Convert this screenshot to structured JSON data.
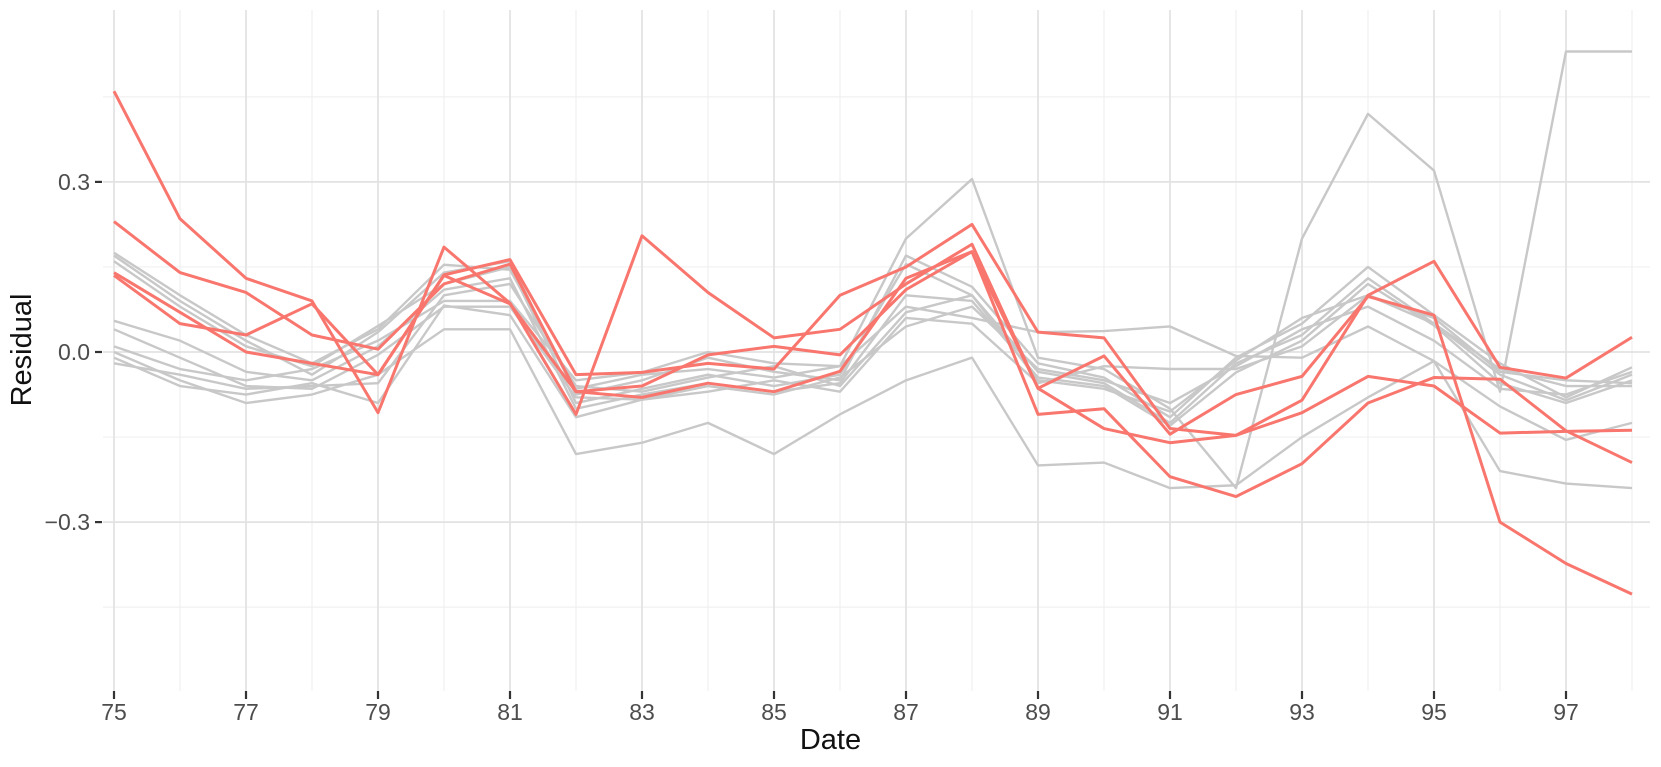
{
  "figure": {
    "title": "",
    "background": "#ffffff"
  },
  "chart_data": {
    "type": "line",
    "title": "",
    "xlabel": "Date",
    "ylabel": "Residual",
    "x": [
      75,
      76,
      77,
      78,
      79,
      80,
      81,
      82,
      83,
      84,
      85,
      86,
      87,
      88,
      89,
      90,
      91,
      92,
      93,
      94,
      95,
      96,
      97,
      98
    ],
    "x_major_ticks": [
      75,
      77,
      79,
      81,
      83,
      85,
      87,
      89,
      91,
      93,
      95,
      97
    ],
    "x_tick_labels": [
      "75",
      "77",
      "79",
      "81",
      "83",
      "85",
      "87",
      "89",
      "91",
      "93",
      "95",
      "97"
    ],
    "x_minor_ticks": [
      76,
      78,
      80,
      82,
      84,
      86,
      88,
      90,
      92,
      94,
      96,
      98
    ],
    "y_major_ticks": [
      0.3,
      0.0,
      -0.3
    ],
    "y_tick_labels": [
      "0.3",
      "0.0",
      "−0.3"
    ],
    "y_minor_ticks": [
      0.45,
      0.15,
      -0.15,
      -0.45
    ],
    "xlim": [
      74.8,
      98.3
    ],
    "ylim": [
      -0.6,
      0.61
    ],
    "grid": "major-and-minor",
    "legend": "none",
    "colors": {
      "highlight_line": "#f8766d",
      "other_line": "#c8c8c8",
      "grid_major": "#e2e2e2",
      "grid_minor": "#f0f0f0",
      "tick_mark": "#333333",
      "tick_text": "#4d4d4d",
      "axis_title_text": "#111111"
    },
    "series": [
      {
        "name": "gray-1",
        "group": "other",
        "values": [
          0.175,
          0.1,
          0.03,
          -0.02,
          0.04,
          0.154,
          0.145,
          -0.065,
          -0.04,
          -0.03,
          -0.045,
          -0.025,
          0.2,
          0.305,
          -0.01,
          -0.03,
          -0.1,
          -0.24,
          0.2,
          0.42,
          0.32,
          -0.07,
          0.53,
          0.53
        ]
      },
      {
        "name": "gray-2",
        "group": "other",
        "values": [
          0.17,
          0.09,
          0.02,
          -0.04,
          0.035,
          0.14,
          0.16,
          -0.075,
          -0.05,
          -0.01,
          -0.035,
          -0.05,
          0.17,
          0.115,
          -0.02,
          -0.045,
          -0.115,
          -0.01,
          0.05,
          0.15,
          0.065,
          -0.02,
          -0.08,
          -0.027
        ]
      },
      {
        "name": "gray-3",
        "group": "other",
        "values": [
          0.16,
          0.08,
          0.01,
          -0.025,
          0.046,
          0.12,
          0.15,
          -0.09,
          -0.065,
          -0.04,
          -0.06,
          -0.04,
          0.155,
          0.1,
          -0.035,
          -0.055,
          -0.125,
          -0.02,
          0.03,
          0.13,
          0.05,
          -0.04,
          -0.085,
          -0.04
        ]
      },
      {
        "name": "gray-4",
        "group": "other",
        "values": [
          0.055,
          0.02,
          -0.035,
          -0.05,
          0.01,
          0.11,
          0.13,
          -0.1,
          -0.075,
          -0.055,
          -0.07,
          -0.055,
          0.1,
          0.09,
          -0.045,
          -0.06,
          -0.13,
          -0.036,
          0.02,
          0.12,
          0.047,
          -0.055,
          -0.09,
          -0.05
        ]
      },
      {
        "name": "gray-5",
        "group": "other",
        "values": [
          0.04,
          -0.01,
          -0.06,
          -0.065,
          -0.005,
          0.08,
          0.08,
          -0.08,
          -0.084,
          -0.07,
          -0.05,
          -0.07,
          0.06,
          0.05,
          -0.055,
          -0.025,
          -0.03,
          -0.03,
          0.01,
          0.1,
          0.05,
          -0.03,
          -0.06,
          -0.06
        ]
      },
      {
        "name": "gray-6",
        "group": "other",
        "values": [
          0.01,
          -0.03,
          -0.05,
          -0.03,
          0.02,
          0.09,
          0.09,
          -0.05,
          -0.036,
          0.0,
          -0.02,
          -0.025,
          0.08,
          0.06,
          0.035,
          0.037,
          0.045,
          -0.007,
          -0.01,
          0.045,
          -0.016,
          -0.096,
          -0.155,
          -0.125
        ]
      },
      {
        "name": "gray-7",
        "group": "other",
        "values": [
          0.0,
          -0.05,
          -0.09,
          -0.075,
          -0.04,
          0.04,
          0.04,
          -0.18,
          -0.16,
          -0.125,
          -0.18,
          -0.11,
          -0.05,
          -0.01,
          -0.2,
          -0.195,
          -0.24,
          -0.235,
          -0.15,
          -0.08,
          -0.016,
          -0.21,
          -0.232,
          -0.24
        ]
      },
      {
        "name": "gray-8",
        "group": "other",
        "values": [
          -0.01,
          -0.06,
          -0.075,
          -0.055,
          -0.09,
          0.082,
          0.065,
          -0.115,
          -0.084,
          -0.06,
          -0.075,
          -0.045,
          0.045,
          0.08,
          -0.03,
          -0.05,
          -0.09,
          -0.025,
          0.04,
          0.08,
          0.02,
          -0.065,
          -0.075,
          -0.035
        ]
      },
      {
        "name": "gray-9",
        "group": "other",
        "values": [
          -0.02,
          -0.04,
          -0.065,
          -0.06,
          -0.055,
          0.1,
          0.12,
          -0.06,
          -0.07,
          -0.045,
          -0.025,
          -0.06,
          0.07,
          0.1,
          -0.05,
          -0.065,
          -0.105,
          -0.015,
          0.06,
          0.1,
          0.06,
          -0.035,
          -0.05,
          -0.055
        ]
      },
      {
        "name": "red-1",
        "group": "highlight",
        "values": [
          0.46,
          0.235,
          0.13,
          0.09,
          -0.107,
          0.185,
          0.086,
          -0.11,
          0.205,
          0.105,
          0.025,
          0.04,
          0.12,
          0.19,
          -0.064,
          -0.007,
          -0.145,
          -0.075,
          -0.043,
          0.098,
          0.065,
          -0.3,
          -0.373,
          -0.427
        ]
      },
      {
        "name": "red-2",
        "group": "highlight",
        "values": [
          0.135,
          0.05,
          0.03,
          0.085,
          -0.04,
          0.136,
          0.163,
          -0.04,
          -0.036,
          -0.02,
          -0.03,
          0.1,
          0.15,
          0.225,
          0.035,
          0.025,
          -0.135,
          -0.147,
          -0.085,
          0.1,
          0.16,
          -0.027,
          -0.046,
          0.026
        ]
      },
      {
        "name": "red-3",
        "group": "highlight",
        "values": [
          0.23,
          0.14,
          0.105,
          0.03,
          0.005,
          0.12,
          0.155,
          -0.07,
          -0.06,
          -0.005,
          0.01,
          -0.005,
          0.11,
          0.177,
          -0.11,
          -0.1,
          -0.22,
          -0.255,
          -0.197,
          -0.09,
          -0.045,
          -0.048,
          -0.139,
          -0.195
        ]
      },
      {
        "name": "red-4",
        "group": "highlight",
        "values": [
          0.14,
          0.07,
          0.0,
          -0.02,
          -0.04,
          0.135,
          0.085,
          -0.07,
          -0.08,
          -0.055,
          -0.07,
          -0.034,
          0.13,
          0.177,
          -0.064,
          -0.135,
          -0.16,
          -0.147,
          -0.107,
          -0.043,
          -0.06,
          -0.143,
          -0.14,
          -0.138
        ]
      }
    ]
  }
}
